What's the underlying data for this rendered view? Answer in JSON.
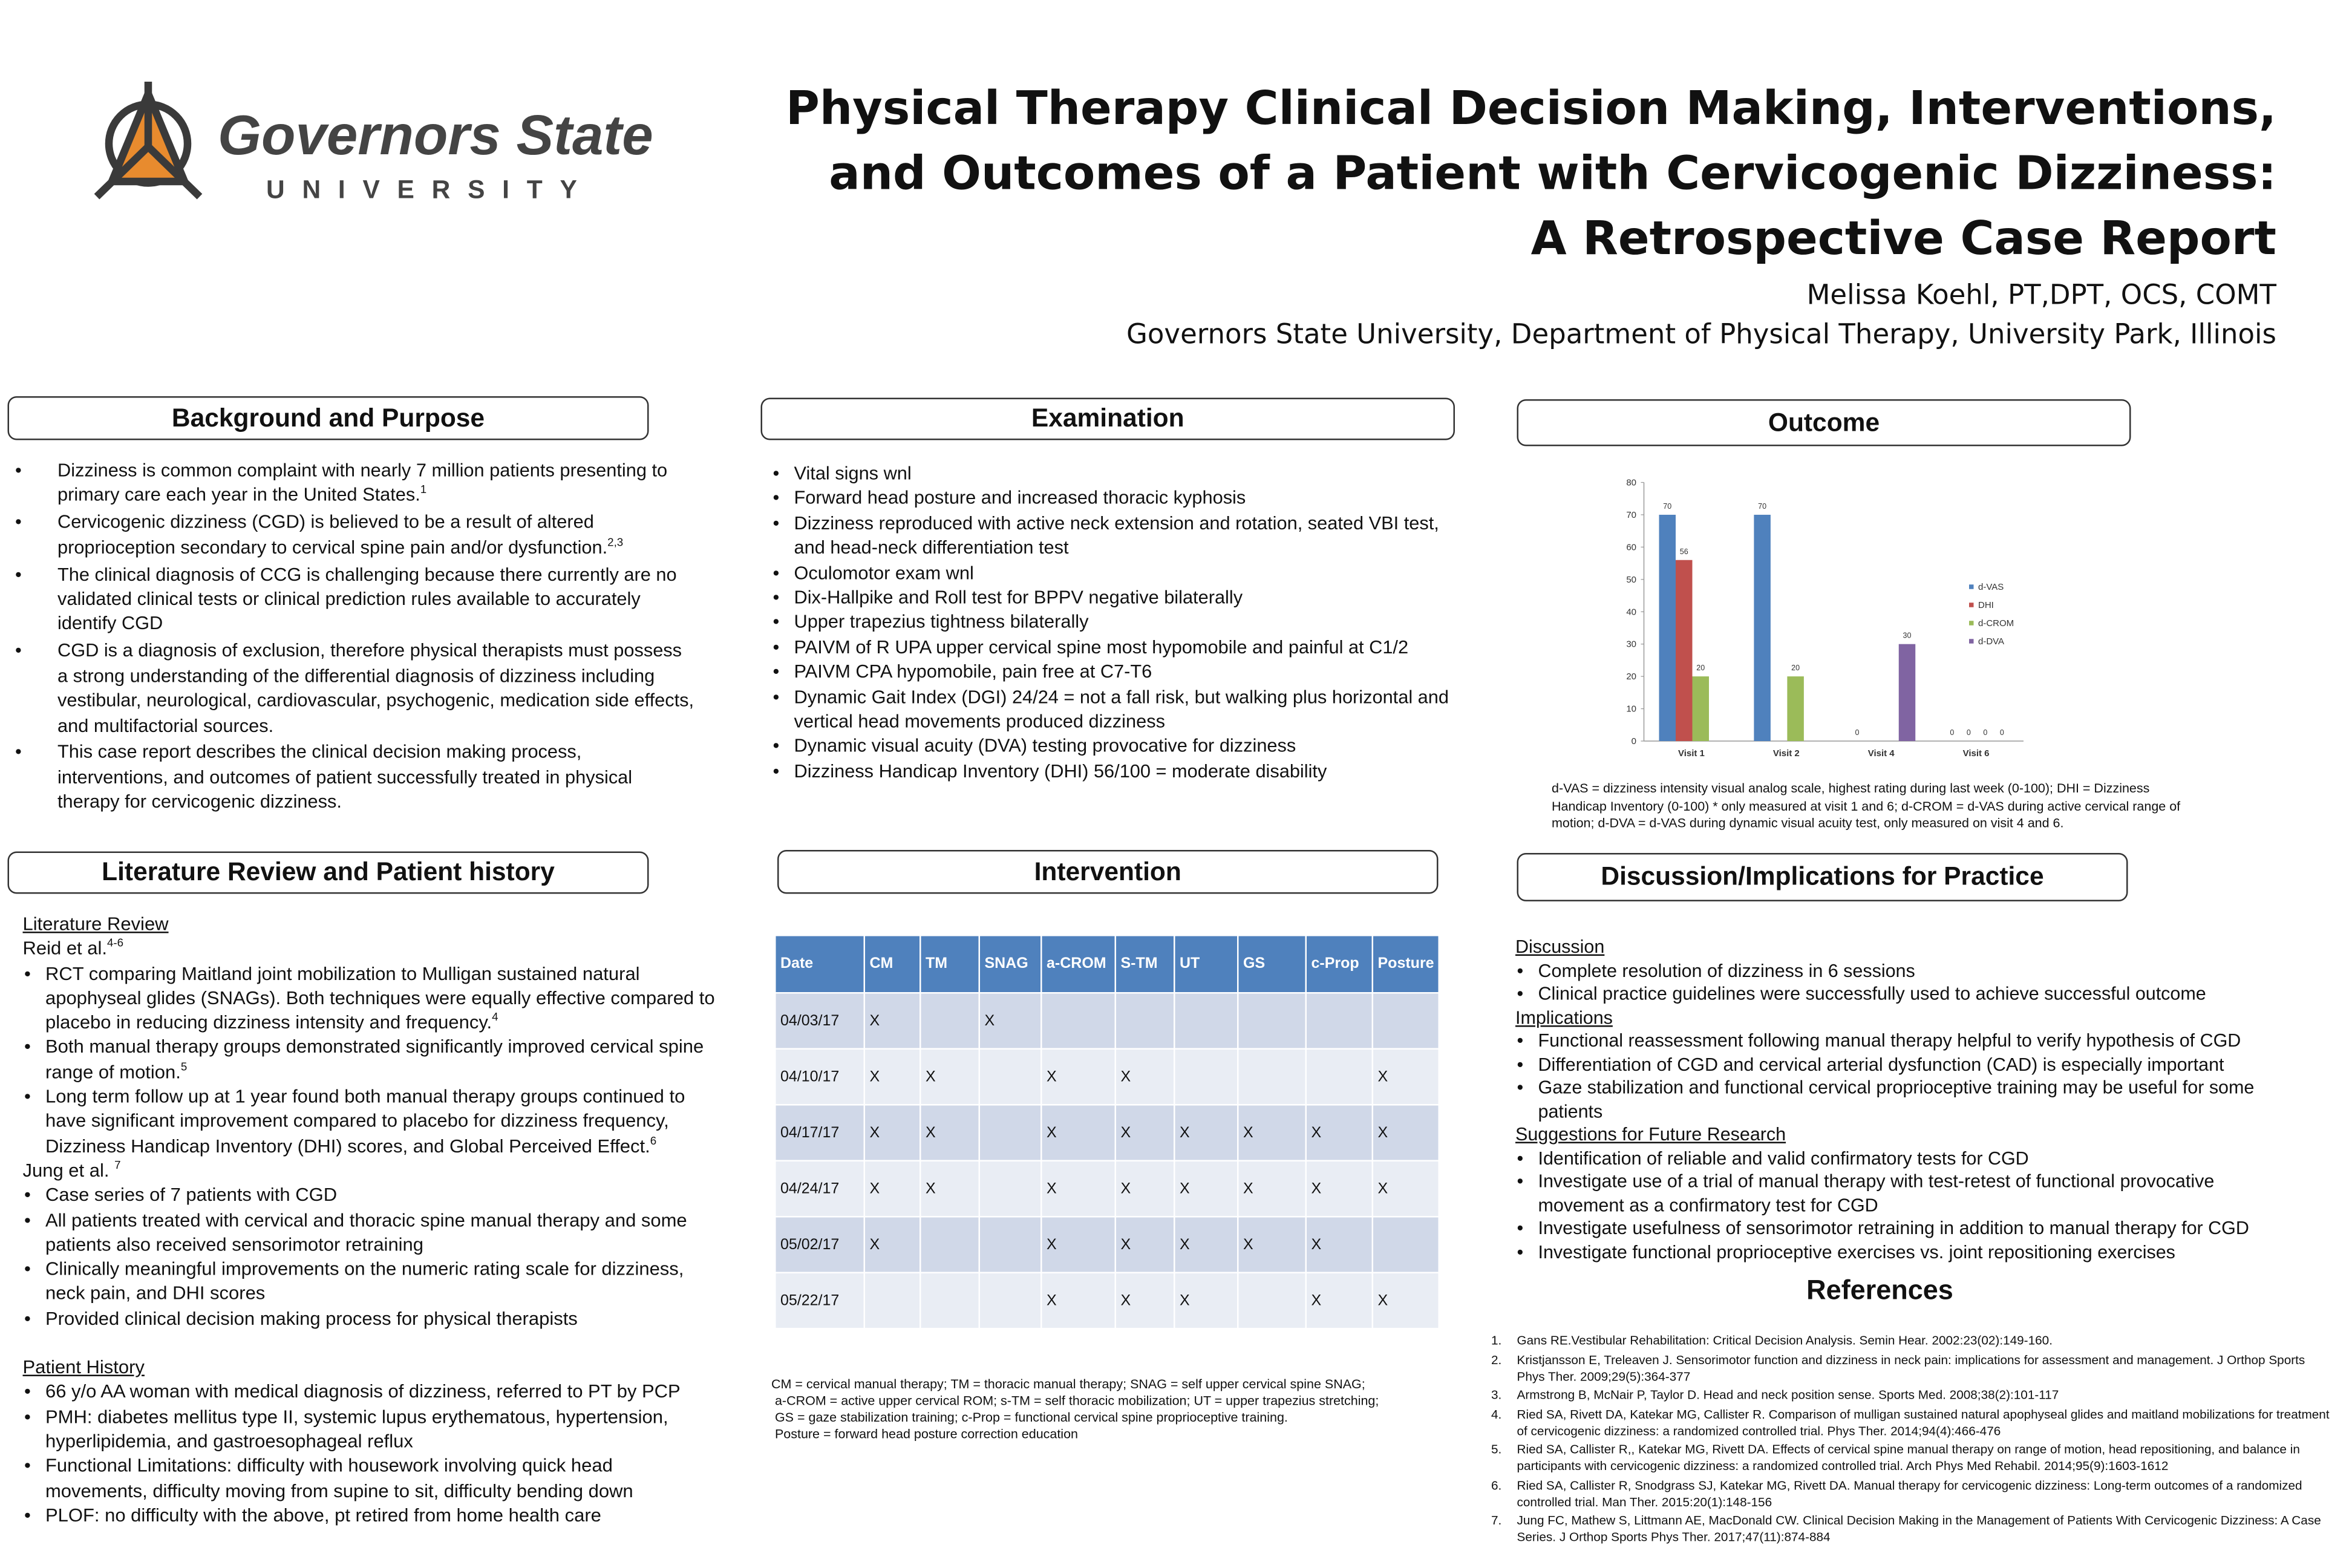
{
  "header": {
    "logo_name": "Governors State",
    "logo_sub": "UNIVERSITY",
    "title": [
      "Physical Therapy Clinical Decision Making, Interventions,",
      "and Outcomes of a Patient with Cervicogenic Dizziness:",
      "A Retrospective Case Report"
    ],
    "author": "Melissa Koehl, PT,DPT, OCS, COMT",
    "affiliation": "Governors State University, Department of Physical Therapy,  University Park, Illinois"
  },
  "background": {
    "heading": "Background and Purpose",
    "items": [
      {
        "b": "Dizziness is common complaint with nearly 7 million patients presenting to primary care each year in the United States.",
        "sup": "1"
      },
      {
        "b": "Cervicogenic dizziness (CGD) is believed to be a result of altered proprioception secondary to cervical spine pain and/or dysfunction.",
        "sup": "2,3"
      },
      {
        "b": "The clinical diagnosis of CCG is challenging because there currently are no validated clinical tests or clinical prediction rules available to accurately identify CGD"
      },
      {
        "b": "CGD is a diagnosis of exclusion, therefore physical therapists must possess a strong understanding of the differential diagnosis of dizziness including vestibular, neurological, cardiovascular, psychogenic, medication side effects,  and multifactorial sources."
      },
      {
        "b": "This case report describes the clinical decision making process, interventions, and outcomes of patient successfully treated in physical therapy for cervicogenic dizziness."
      }
    ]
  },
  "literature": {
    "heading": "Literature Review and Patient history",
    "items": [
      {
        "h": "Literature Review"
      },
      {
        "p": "Reid et al.",
        "sup": "4-6"
      },
      {
        "b": "RCT comparing Maitland joint mobilization to Mulligan sustained natural apophyseal glides (SNAGs).  Both techniques were equally effective compared to placebo in reducing dizziness intensity and frequency.",
        "sup": "4"
      },
      {
        "b": "Both manual therapy groups demonstrated significantly improved cervical spine range of motion.",
        "sup": "5"
      },
      {
        "b": "Long term follow up at 1 year found both manual therapy groups continued to have significant improvement compared to placebo for dizziness frequency, Dizziness Handicap Inventory (DHI) scores, and Global Perceived Effect.",
        "sup": "6"
      },
      {
        "p": "Jung et al. ",
        "sup": "7"
      },
      {
        "b": "Case series of 7 patients with CGD"
      },
      {
        "b": "All patients treated with cervical and thoracic spine manual therapy and some patients also received sensorimotor retraining"
      },
      {
        "b": "Clinically meaningful improvements on the numeric rating scale for dizziness, neck pain, and DHI scores"
      },
      {
        "b": "Provided clinical decision making process for physical therapists"
      },
      {
        "h": "Patient History"
      },
      {
        "b": "66 y/o AA woman with medical diagnosis of dizziness, referred to PT by PCP"
      },
      {
        "b": "PMH: diabetes mellitus type II, systemic lupus erythematous, hypertension, hyperlipidemia, and gastroesophageal reflux"
      },
      {
        "b": "Functional Limitations: difficulty with housework involving quick head movements, difficulty moving from supine to sit, difficulty bending down"
      },
      {
        "b": "PLOF: no difficulty with the above, pt retired from home health care"
      }
    ]
  },
  "examination": {
    "heading": "Examination",
    "items": [
      {
        "b": "Vital signs wnl"
      },
      {
        "b": "Forward head posture and increased thoracic kyphosis"
      },
      {
        "b": "Dizziness reproduced with active neck extension and rotation, seated VBI test, and head-neck differentiation test"
      },
      {
        "b": "Oculomotor exam wnl"
      },
      {
        "b": "Dix-Hallpike and Roll test for BPPV negative bilaterally"
      },
      {
        "b": "Upper trapezius tightness bilaterally"
      },
      {
        "b": "PAIVM of R UPA upper cervical spine most hypomobile and painful at C1/2"
      },
      {
        "b": "PAIVM  CPA hypomobile, pain free at C7-T6"
      },
      {
        "b": "Dynamic Gait Index (DGI)  24/24 = not a fall risk, but walking plus horizontal and vertical head movements produced dizziness"
      },
      {
        "b": "Dynamic visual acuity (DVA) testing provocative for dizziness"
      },
      {
        "b": "Dizziness Handicap Inventory (DHI) 56/100 = moderate disability"
      }
    ]
  },
  "intervention": {
    "heading": "Intervention",
    "table": {
      "header": [
        "Date",
        "CM",
        "TM",
        "SNAG",
        "a-CROM",
        "S-TM",
        "UT",
        "GS",
        "c-Prop",
        "Posture"
      ],
      "rows": [
        [
          "04/03/17",
          "X",
          null,
          "X",
          null,
          null,
          null,
          null,
          null,
          null
        ],
        [
          "04/10/17",
          "X",
          "X",
          null,
          "X",
          "X",
          null,
          null,
          null,
          "X"
        ],
        [
          "04/17/17",
          "X",
          "X",
          null,
          "X",
          "X",
          "X",
          "X",
          "X",
          "X"
        ],
        [
          "04/24/17",
          "X",
          "X",
          null,
          "X",
          "X",
          "X",
          "X",
          "X",
          "X"
        ],
        [
          "05/02/17",
          "X",
          null,
          null,
          "X",
          "X",
          "X",
          "X",
          "X",
          null
        ],
        [
          "05/22/17",
          null,
          null,
          null,
          "X",
          "X",
          "X",
          null,
          "X",
          "X"
        ]
      ]
    },
    "notes": [
      "CM = cervical manual therapy; TM = thoracic manual therapy; SNAG = self upper cervical spine SNAG;",
      " a-CROM = active upper cervical ROM; s-TM = self thoracic mobilization; UT = upper trapezius stretching;",
      " GS = gaze stabilization training; c-Prop = functional cervical spine proprioceptive training.",
      " Posture = forward head posture correction education"
    ]
  },
  "outcome": {
    "heading": "Outcome",
    "caption": "d-VAS = dizziness intensity visual analog scale, highest rating during  last week (0-100); DHI = Dizziness Handicap Inventory (0-100) * only measured at visit 1 and 6; d-CROM = d-VAS during active cervical range of motion; d-DVA = d-VAS during dynamic visual acuity test, only measured on visit 4 and 6."
  },
  "chart_data": {
    "type": "bar",
    "categories": [
      "Visit 1",
      "Visit 2",
      "Visit 4",
      "Visit 6"
    ],
    "series": [
      {
        "name": "d-VAS",
        "color": "#4f81bd",
        "values": [
          70,
          70,
          0,
          0
        ]
      },
      {
        "name": "DHI",
        "color": "#c0504d",
        "values": [
          56,
          null,
          null,
          0
        ]
      },
      {
        "name": "d-CROM",
        "color": "#9bbb59",
        "values": [
          20,
          20,
          null,
          0
        ]
      },
      {
        "name": "d-DVA",
        "color": "#8064a2",
        "values": [
          null,
          null,
          30,
          0
        ]
      }
    ],
    "ylim": [
      0,
      80
    ],
    "yticks": [
      0,
      10,
      20,
      30,
      40,
      50,
      60,
      70,
      80
    ],
    "legend": "right",
    "data_labels": true
  },
  "discussion": {
    "heading": "Discussion/Implications for Practice",
    "items": [
      {
        "h": "Discussion"
      },
      {
        "b": "Complete resolution of dizziness in 6 sessions"
      },
      {
        "b": "Clinical practice guidelines were successfully used to achieve successful outcome"
      },
      {
        "h": "Implications"
      },
      {
        "b": "Functional reassessment following manual therapy helpful to verify hypothesis of CGD"
      },
      {
        "b": "Differentiation of CGD and cervical arterial dysfunction (CAD) is especially important"
      },
      {
        "b": "Gaze stabilization and functional cervical proprioceptive training may be useful for some patients"
      },
      {
        "h": "Suggestions for Future Research"
      },
      {
        "b": "Identification of reliable and valid confirmatory tests for CGD"
      },
      {
        "b": "Investigate use of a trial of manual therapy with test-retest of functional provocative movement as a confirmatory test for CGD"
      },
      {
        "b": "Investigate usefulness of sensorimotor retraining in addition to manual therapy for CGD"
      },
      {
        "b": "Investigate functional proprioceptive exercises vs. joint repositioning exercises"
      }
    ]
  },
  "references": {
    "heading": "References",
    "items": [
      {
        "num": "1.",
        "text": "Gans RE.Vestibular Rehabilitation: Critical Decision Analysis. Semin Hear. 2002:23(02):149-160."
      },
      {
        "num": "2.",
        "text": "Kristjansson E, Treleaven J. Sensorimotor function and dizziness in neck pain: implications for assessment and management. J Orthop Sports Phys Ther. 2009;29(5):364-377"
      },
      {
        "num": "3.",
        "text": "Armstrong B, McNair P, Taylor D. Head and neck position sense. Sports Med. 2008;38(2):101-117"
      },
      {
        "num": "4.",
        "text": "Ried SA, Rivett DA, Katekar MG, Callister R. Comparison of mulligan sustained natural apophyseal glides and maitland mobilizations for treatment of cervicogenic dizziness: a randomized controlled trial. Phys Ther. 2014;94(4):466-476"
      },
      {
        "num": "5.",
        "text": "Ried SA, Callister R,, Katekar MG, Rivett DA. Effects of cervical spine manual therapy on range of motion, head repositioning, and balance in participants with cervicogenic dizziness: a randomized controlled trial. Arch Phys Med Rehabil. 2014;95(9):1603-1612"
      },
      {
        "num": "6.",
        "text": "Ried SA, Callister R, Snodgrass SJ, Katekar MG, Rivett DA. Manual therapy for cervicogenic dizziness: Long-term outcomes of a randomized controlled trial. Man Ther. 2015:20(1):148-156"
      },
      {
        "num": "7.",
        "text": "Jung FC, Mathew S, Littmann AE, MacDonald CW. Clinical Decision Making in the Management of Patients With Cervicogenic Dizziness: A Case Series. J Orthop Sports Phys Ther. 2017;47(11):874-884"
      }
    ]
  }
}
